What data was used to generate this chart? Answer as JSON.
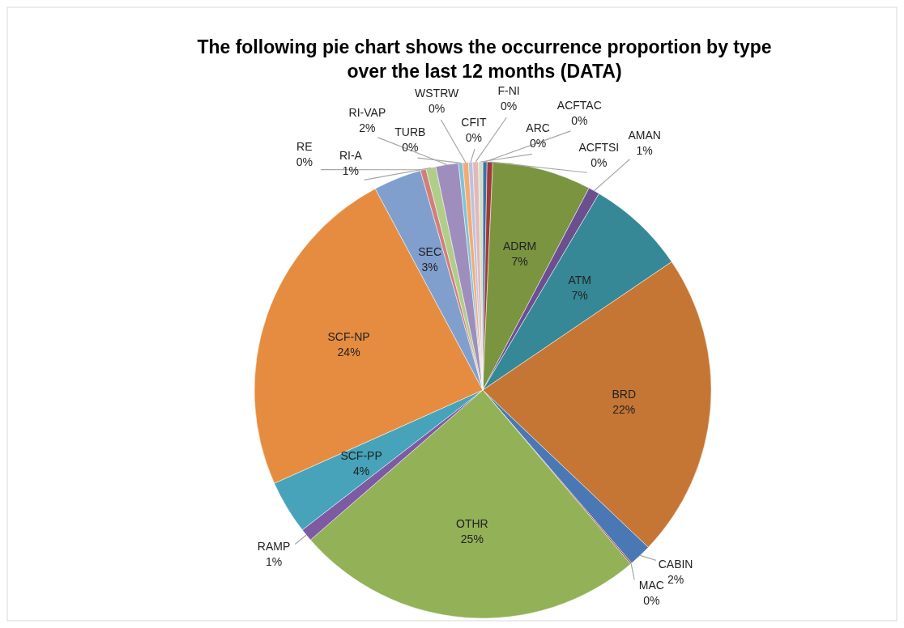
{
  "chart_data": {
    "type": "pie",
    "title": "The following pie chart shows the occurrence proportion by type over the last 12 months (DATA)",
    "categories": [
      "ACFTAC",
      "ACFTSI",
      "ADRM",
      "AMAN",
      "ATM",
      "BRD",
      "CABIN",
      "MAC",
      "OTHR",
      "RAMP",
      "SCF-PP",
      "SCF-NP",
      "SEC",
      "RE",
      "RI-A",
      "RI-VAP",
      "TURB",
      "WSTRW",
      "CFIT",
      "F-NI",
      "ARC"
    ],
    "values": [
      0.3,
      0.4,
      7.0,
      0.8,
      7.0,
      21.6,
      1.6,
      0.1,
      24.8,
      0.9,
      3.8,
      23.9,
      3.4,
      0.4,
      0.7,
      1.6,
      0.3,
      0.4,
      0.3,
      0.4,
      0.3
    ],
    "value_labels": [
      "0%",
      "0%",
      "7%",
      "1%",
      "7%",
      "22%",
      "2%",
      "0%",
      "25%",
      "1%",
      "4%",
      "24%",
      "3%",
      "0%",
      "1%",
      "2%",
      "0%",
      "0%",
      "0%",
      "0%",
      "0%"
    ],
    "colors": [
      "#3f6fb0",
      "#9e3a38",
      "#7a9440",
      "#6b4f8f",
      "#378896",
      "#c57634",
      "#4a78b5",
      "#a04040",
      "#93b157",
      "#7d5ba3",
      "#46a3ba",
      "#e68c40",
      "#809fcd",
      "#d17e7c",
      "#b1cd8a",
      "#9f8dbd",
      "#7ec4d6",
      "#f5aa73",
      "#b6c3e3",
      "#e4b8b8",
      "#d3e0bf"
    ],
    "legend": false
  }
}
